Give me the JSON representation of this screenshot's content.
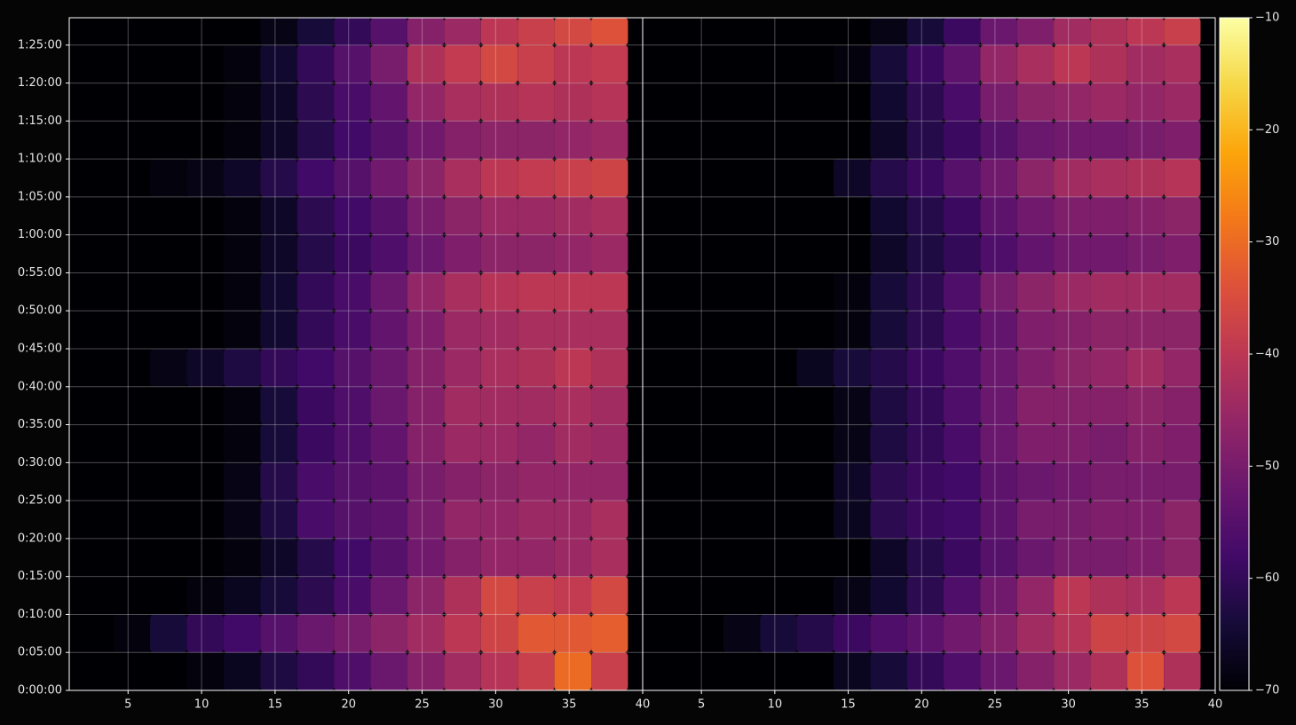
{
  "chart_data": [
    {
      "type": "heatmap",
      "colormap": "inferno",
      "grid": true,
      "xlim": [
        1,
        40
      ],
      "xticks": [
        5,
        10,
        15,
        20,
        25,
        30,
        35,
        40
      ],
      "ylim": [
        0,
        88.6
      ],
      "yticks": [
        {
          "value": 0,
          "label": "0:00:00"
        },
        {
          "value": 5,
          "label": "0:05:00"
        },
        {
          "value": 10,
          "label": "0:10:00"
        },
        {
          "value": 15,
          "label": "0:15:00"
        },
        {
          "value": 20,
          "label": "0:20:00"
        },
        {
          "value": 25,
          "label": "0:25:00"
        },
        {
          "value": 30,
          "label": "0:30:00"
        },
        {
          "value": 35,
          "label": "0:35:00"
        },
        {
          "value": 40,
          "label": "0:40:00"
        },
        {
          "value": 45,
          "label": "0:45:00"
        },
        {
          "value": 50,
          "label": "0:50:00"
        },
        {
          "value": 55,
          "label": "0:55:00"
        },
        {
          "value": 60,
          "label": "1:00:00"
        },
        {
          "value": 65,
          "label": "1:05:00"
        },
        {
          "value": 70,
          "label": "1:10:00"
        },
        {
          "value": 75,
          "label": "1:15:00"
        },
        {
          "value": 80,
          "label": "1:20:00"
        },
        {
          "value": 85,
          "label": "1:25:00"
        }
      ],
      "zlim": [
        -70,
        -10
      ],
      "x_edges": [
        1.5,
        4,
        6.5,
        9,
        11.5,
        14,
        16.5,
        19,
        21.5,
        24,
        26.5,
        29,
        31.5,
        34,
        36.5,
        39
      ],
      "y_edges": [
        0,
        5,
        10,
        15,
        20,
        25,
        30,
        35,
        40,
        45,
        50,
        55,
        60,
        65,
        70,
        75,
        80,
        85,
        88.6
      ],
      "z": [
        [
          -70,
          -70,
          -70,
          -69,
          -67,
          -63,
          -60,
          -56,
          -52,
          -48,
          -44,
          -41,
          -38,
          -30,
          -38
        ],
        [
          -70,
          -69,
          -64,
          -60,
          -58,
          -55,
          -52,
          -50,
          -47,
          -44,
          -40,
          -37,
          -33,
          -33,
          -32
        ],
        [
          -70,
          -70,
          -70,
          -69,
          -67,
          -64,
          -61,
          -57,
          -52,
          -47,
          -42,
          -36,
          -38,
          -39,
          -36
        ],
        [
          -70,
          -70,
          -70,
          -70,
          -69,
          -66,
          -62,
          -58,
          -55,
          -51,
          -48,
          -46,
          -46,
          -45,
          -43
        ],
        [
          -70,
          -70,
          -70,
          -70,
          -68,
          -63,
          -57,
          -55,
          -54,
          -50,
          -46,
          -46,
          -45,
          -45,
          -43
        ],
        [
          -70,
          -70,
          -70,
          -70,
          -68,
          -62,
          -57,
          -55,
          -54,
          -50,
          -48,
          -47,
          -46,
          -46,
          -46
        ],
        [
          -70,
          -70,
          -70,
          -70,
          -69,
          -64,
          -59,
          -56,
          -53,
          -48,
          -45,
          -45,
          -46,
          -44,
          -45
        ],
        [
          -70,
          -70,
          -70,
          -70,
          -69,
          -64,
          -59,
          -56,
          -52,
          -48,
          -44,
          -44,
          -44,
          -43,
          -44
        ],
        [
          -70,
          -70,
          -68,
          -66,
          -63,
          -60,
          -58,
          -55,
          -52,
          -48,
          -45,
          -43,
          -42,
          -40,
          -42
        ],
        [
          -70,
          -70,
          -70,
          -70,
          -69,
          -65,
          -60,
          -57,
          -53,
          -49,
          -45,
          -44,
          -43,
          -43,
          -43
        ],
        [
          -70,
          -70,
          -70,
          -70,
          -69,
          -65,
          -60,
          -57,
          -52,
          -46,
          -43,
          -41,
          -40,
          -40,
          -40
        ],
        [
          -70,
          -70,
          -70,
          -70,
          -69,
          -66,
          -62,
          -59,
          -56,
          -52,
          -49,
          -47,
          -47,
          -46,
          -45
        ],
        [
          -70,
          -70,
          -70,
          -70,
          -69,
          -66,
          -61,
          -58,
          -55,
          -50,
          -47,
          -45,
          -45,
          -44,
          -43
        ],
        [
          -70,
          -70,
          -69,
          -68,
          -66,
          -62,
          -58,
          -55,
          -51,
          -47,
          -43,
          -40,
          -39,
          -38,
          -37
        ],
        [
          -70,
          -70,
          -70,
          -70,
          -69,
          -66,
          -62,
          -58,
          -55,
          -51,
          -48,
          -47,
          -47,
          -46,
          -45
        ],
        [
          -70,
          -70,
          -70,
          -70,
          -69,
          -66,
          -61,
          -57,
          -53,
          -46,
          -43,
          -42,
          -41,
          -42,
          -41
        ],
        [
          -70,
          -70,
          -70,
          -70,
          -69,
          -65,
          -60,
          -55,
          -50,
          -42,
          -39,
          -36,
          -38,
          -40,
          -39
        ],
        [
          -70,
          -70,
          -70,
          -70,
          -70,
          -68,
          -64,
          -60,
          -55,
          -48,
          -45,
          -40,
          -38,
          -36,
          -34
        ]
      ]
    },
    {
      "type": "heatmap",
      "colormap": "inferno",
      "grid": true,
      "xlim": [
        1,
        40
      ],
      "xticks": [
        5,
        10,
        15,
        20,
        25,
        30,
        35,
        40
      ],
      "ylim": [
        0,
        88.6
      ],
      "zlim": [
        -70,
        -10
      ],
      "colorbar_ticks": [
        {
          "value": -70,
          "label": "−70"
        },
        {
          "value": -60,
          "label": "−60"
        },
        {
          "value": -50,
          "label": "−50"
        },
        {
          "value": -40,
          "label": "−40"
        },
        {
          "value": -30,
          "label": "−30"
        },
        {
          "value": -20,
          "label": "−20"
        },
        {
          "value": -10,
          "label": "−10"
        }
      ],
      "x_edges": [
        1.5,
        4,
        6.5,
        9,
        11.5,
        14,
        16.5,
        19,
        21.5,
        24,
        26.5,
        29,
        31.5,
        34,
        36.5,
        39
      ],
      "y_edges": [
        0,
        5,
        10,
        15,
        20,
        25,
        30,
        35,
        40,
        45,
        50,
        55,
        60,
        65,
        70,
        75,
        80,
        85,
        88.6
      ],
      "z": [
        [
          -70,
          -70,
          -70,
          -70,
          -70,
          -67,
          -64,
          -60,
          -56,
          -52,
          -48,
          -45,
          -42,
          -34,
          -42
        ],
        [
          -70,
          -70,
          -68,
          -64,
          -62,
          -59,
          -56,
          -54,
          -51,
          -48,
          -44,
          -41,
          -37,
          -37,
          -36
        ],
        [
          -70,
          -70,
          -70,
          -70,
          -70,
          -68,
          -65,
          -61,
          -56,
          -51,
          -46,
          -40,
          -42,
          -43,
          -40
        ],
        [
          -70,
          -70,
          -70,
          -70,
          -70,
          -70,
          -66,
          -62,
          -59,
          -55,
          -52,
          -50,
          -50,
          -49,
          -47
        ],
        [
          -70,
          -70,
          -70,
          -70,
          -70,
          -67,
          -61,
          -59,
          -58,
          -54,
          -50,
          -50,
          -49,
          -49,
          -47
        ],
        [
          -70,
          -70,
          -70,
          -70,
          -70,
          -66,
          -61,
          -59,
          -58,
          -54,
          -52,
          -51,
          -50,
          -50,
          -50
        ],
        [
          -70,
          -70,
          -70,
          -70,
          -70,
          -68,
          -63,
          -60,
          -57,
          -52,
          -49,
          -49,
          -50,
          -48,
          -49
        ],
        [
          -70,
          -70,
          -70,
          -70,
          -70,
          -68,
          -63,
          -60,
          -56,
          -52,
          -48,
          -48,
          -48,
          -47,
          -48
        ],
        [
          -70,
          -70,
          -70,
          -70,
          -67,
          -64,
          -62,
          -59,
          -56,
          -52,
          -49,
          -47,
          -46,
          -44,
          -46
        ],
        [
          -70,
          -70,
          -70,
          -70,
          -70,
          -69,
          -64,
          -61,
          -57,
          -53,
          -49,
          -48,
          -47,
          -47,
          -47
        ],
        [
          -70,
          -70,
          -70,
          -70,
          -70,
          -69,
          -64,
          -61,
          -56,
          -50,
          -47,
          -45,
          -44,
          -44,
          -44
        ],
        [
          -70,
          -70,
          -70,
          -70,
          -70,
          -70,
          -66,
          -63,
          -60,
          -56,
          -53,
          -51,
          -51,
          -50,
          -49
        ],
        [
          -70,
          -70,
          -70,
          -70,
          -70,
          -70,
          -65,
          -62,
          -59,
          -54,
          -51,
          -49,
          -49,
          -48,
          -47
        ],
        [
          -70,
          -70,
          -70,
          -70,
          -70,
          -66,
          -62,
          -59,
          -55,
          -51,
          -47,
          -44,
          -43,
          -42,
          -41
        ],
        [
          -70,
          -70,
          -70,
          -70,
          -70,
          -70,
          -66,
          -62,
          -59,
          -55,
          -52,
          -51,
          -51,
          -50,
          -49
        ],
        [
          -70,
          -70,
          -70,
          -70,
          -70,
          -70,
          -65,
          -61,
          -57,
          -50,
          -47,
          -46,
          -45,
          -46,
          -45
        ],
        [
          -70,
          -70,
          -70,
          -70,
          -70,
          -69,
          -64,
          -59,
          -54,
          -46,
          -43,
          -40,
          -42,
          -44,
          -43
        ],
        [
          -70,
          -70,
          -70,
          -70,
          -70,
          -70,
          -68,
          -64,
          -59,
          -52,
          -49,
          -44,
          -42,
          -40,
          -38
        ]
      ]
    }
  ]
}
